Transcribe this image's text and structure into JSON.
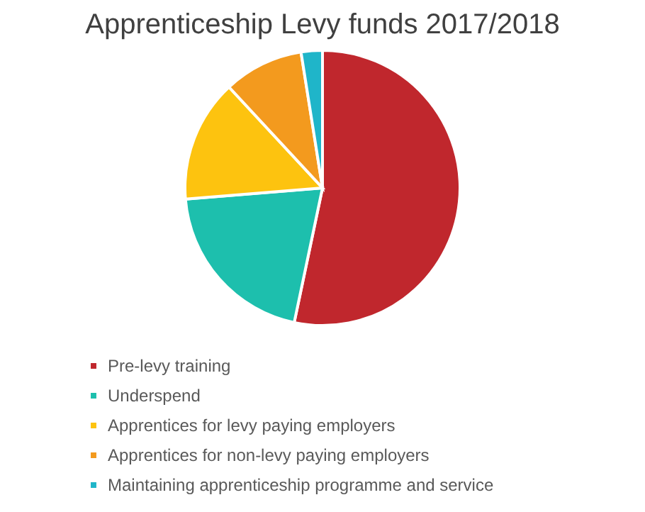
{
  "chart_data": {
    "type": "pie",
    "title": "Apprenticeship Levy funds 2017/2018",
    "categories": [
      "Pre-levy training",
      "Underspend",
      "Apprentices for levy paying employers",
      "Apprentices for non-levy paying employers",
      "Maintaining apprenticeship programme and service"
    ],
    "values": [
      53.3,
      20.4,
      14.4,
      9.4,
      2.5
    ],
    "colors": [
      "#c0272d",
      "#1dbfad",
      "#fdc30f",
      "#f39a1e",
      "#1fb5c9"
    ],
    "legend": "bottom"
  }
}
